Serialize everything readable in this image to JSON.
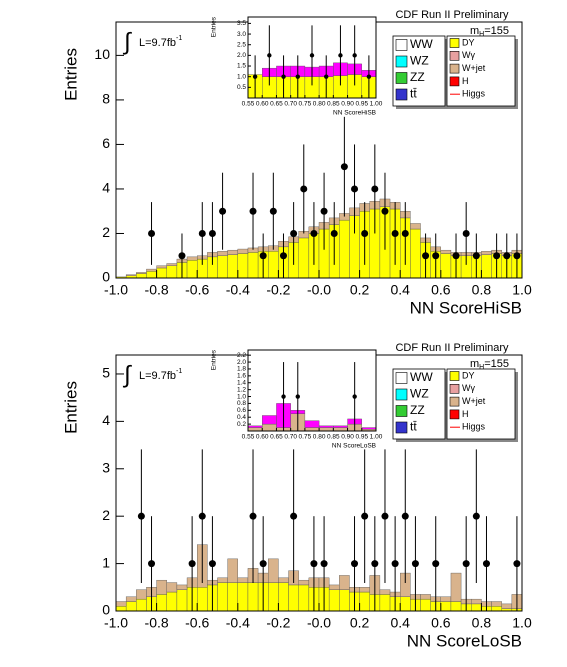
{
  "chart_data": [
    {
      "type": "histogram",
      "title": "CDF Run II Preliminary",
      "mass_label": {
        "base": "m",
        "sub": "H",
        "rest": "=155"
      },
      "lumi": {
        "symbol": "∫",
        "text": "L=9.7fb",
        "sup": "-1"
      },
      "xlabel": "NN ScoreHiSB",
      "ylabel": "Entries",
      "xlim": [
        -1,
        1
      ],
      "ylim": [
        0,
        11.5
      ],
      "xticks": [
        {
          "value": -1,
          "label": "-1.0"
        },
        -0.8,
        -0.6,
        -0.4,
        -0.2,
        {
          "value": 0,
          "label": "-0.0"
        },
        0.2,
        0.4,
        0.6,
        0.8,
        {
          "value": 1,
          "label": "1.0"
        }
      ],
      "yticks": [
        0,
        2,
        4,
        6,
        8,
        10
      ],
      "bins": [
        -1,
        -0.95,
        -0.9,
        -0.85,
        -0.8,
        -0.75,
        -0.7,
        -0.65,
        -0.6,
        -0.55,
        -0.5,
        -0.45,
        -0.4,
        -0.35,
        -0.3,
        -0.25,
        -0.2,
        -0.15,
        -0.1,
        -0.05,
        0,
        0.05,
        0.1,
        0.15,
        0.2,
        0.25,
        0.3,
        0.35,
        0.4,
        0.45,
        0.5,
        0.55,
        0.6,
        0.65,
        0.7,
        0.75,
        0.8,
        0.85,
        0.9,
        0.95,
        1
      ],
      "series": [
        {
          "name": "WW",
          "color": "#ffffff"
        },
        {
          "name": "WZ",
          "color": "#00ffff"
        },
        {
          "name": "ZZ",
          "color": "#33cc33"
        },
        {
          "name": "tt̄",
          "color": "#3333cc"
        },
        {
          "name": "DY",
          "color": "#ffff00",
          "values": [
            0.05,
            0.1,
            0.2,
            0.3,
            0.45,
            0.55,
            0.7,
            0.8,
            0.85,
            0.95,
            1.0,
            1.05,
            1.1,
            1.15,
            1.2,
            1.2,
            1.4,
            1.6,
            1.8,
            2.0,
            2.2,
            2.4,
            2.6,
            2.8,
            3.0,
            3.1,
            3.2,
            3.1,
            2.7,
            2.2,
            1.6,
            1.2,
            1.1,
            1.0,
            1.0,
            1.0,
            1.05,
            1.1,
            1.0,
            1.1
          ]
        },
        {
          "name": "Wγ",
          "color": "#e8a0a0"
        },
        {
          "name": "W+jet",
          "color": "#d9b38c",
          "values": [
            0,
            0.05,
            0.05,
            0.1,
            0.1,
            0.1,
            0.15,
            0.15,
            0.15,
            0.2,
            0.2,
            0.2,
            0.2,
            0.2,
            0.2,
            0.25,
            0.25,
            0.25,
            0.3,
            0.3,
            0.3,
            0.3,
            0.3,
            0.35,
            0.35,
            0.35,
            0.35,
            0.3,
            0.3,
            0.25,
            0.2,
            0.2,
            0.15,
            0.15,
            0.15,
            0.15,
            0.15,
            0.15,
            0.15,
            0.15
          ]
        },
        {
          "name": "H",
          "color": "#ff0000"
        },
        {
          "name": "Higgs",
          "color": "#ff0000",
          "legend_marker": "line"
        }
      ],
      "data": {
        "color": "#000000",
        "values": [
          null,
          null,
          null,
          2,
          null,
          null,
          1,
          null,
          2,
          2,
          3,
          null,
          null,
          3,
          1,
          3,
          1,
          2,
          4,
          2,
          3,
          2,
          5,
          4,
          2,
          4,
          3,
          2,
          2,
          null,
          1,
          1,
          null,
          1,
          2,
          1,
          null,
          1,
          1,
          1
        ],
        "errors": [
          null,
          null,
          null,
          1.41,
          null,
          null,
          1,
          null,
          1.41,
          1.41,
          1.73,
          null,
          null,
          1.73,
          1,
          1.73,
          1,
          1.41,
          2,
          1.41,
          1.73,
          1.41,
          2.24,
          2,
          1.41,
          2,
          1.73,
          1.41,
          1.41,
          null,
          1,
          1,
          null,
          1,
          1.41,
          1,
          null,
          1,
          1,
          1
        ]
      },
      "inset": {
        "type": "histogram",
        "xlabel": "NN ScoreHiSB",
        "ylabel": "Entries",
        "xlim": [
          0.55,
          1
        ],
        "ylim": [
          0,
          3.8
        ],
        "xticks": [
          0.55,
          {
            "value": 0.6,
            "label": "0.60"
          },
          0.65,
          {
            "value": 0.7,
            "label": "0.70"
          },
          0.75,
          {
            "value": 0.8,
            "label": "0.80"
          },
          0.85,
          {
            "value": 0.9,
            "label": "0.90"
          },
          0.95,
          {
            "value": 1,
            "label": "1.00"
          }
        ],
        "yticks": [
          0.5,
          {
            "value": 1,
            "label": "1.0"
          },
          1.5,
          {
            "value": 2,
            "label": "2.0"
          },
          2.5,
          {
            "value": 3,
            "label": "3.0"
          },
          3.5
        ],
        "bins": [
          0.55,
          0.6,
          0.65,
          0.7,
          0.75,
          0.8,
          0.85,
          0.9,
          0.95,
          1
        ],
        "series": [
          {
            "color": "#ffff00",
            "values": [
              1.1,
              1.0,
              1.0,
              1.0,
              1.0,
              1.0,
              1.05,
              1.1,
              1.0
            ]
          },
          {
            "color": "#ff00ff",
            "values": [
              0,
              0.4,
              0.5,
              0.5,
              0.45,
              0.5,
              0.6,
              0.5,
              0.3
            ]
          }
        ],
        "data": {
          "color": "#000000",
          "values": [
            1,
            2,
            1,
            1,
            2,
            1,
            2,
            2,
            1
          ],
          "errors": [
            1,
            1.41,
            1,
            1,
            1.41,
            1,
            1.41,
            1.41,
            1
          ]
        }
      }
    },
    {
      "type": "histogram",
      "title": "CDF Run II Preliminary",
      "mass_label": {
        "base": "m",
        "sub": "H",
        "rest": "=155"
      },
      "lumi": {
        "symbol": "∫",
        "text": "L=9.7fb",
        "sup": "-1"
      },
      "xlabel": "NN ScoreLoSB",
      "ylabel": "Entries",
      "xlim": [
        -1,
        1
      ],
      "ylim": [
        0,
        5.4
      ],
      "xticks": [
        {
          "value": -1,
          "label": "-1.0"
        },
        -0.8,
        -0.6,
        -0.4,
        -0.2,
        {
          "value": 0,
          "label": "-0.0"
        },
        0.2,
        0.4,
        0.6,
        0.8,
        {
          "value": 1,
          "label": "1.0"
        }
      ],
      "yticks": [
        0,
        1,
        2,
        3,
        4,
        5
      ],
      "bins": [
        -1,
        -0.95,
        -0.9,
        -0.85,
        -0.8,
        -0.75,
        -0.7,
        -0.65,
        -0.6,
        -0.55,
        -0.5,
        -0.45,
        -0.4,
        -0.35,
        -0.3,
        -0.25,
        -0.2,
        -0.15,
        -0.1,
        -0.05,
        0,
        0.05,
        0.1,
        0.15,
        0.2,
        0.25,
        0.3,
        0.35,
        0.4,
        0.45,
        0.5,
        0.55,
        0.6,
        0.65,
        0.7,
        0.75,
        0.8,
        0.85,
        0.9,
        0.95,
        1
      ],
      "series": [
        {
          "name": "WW",
          "color": "#ffffff"
        },
        {
          "name": "WZ",
          "color": "#00ffff"
        },
        {
          "name": "ZZ",
          "color": "#33cc33"
        },
        {
          "name": "tt̄",
          "color": "#3333cc"
        },
        {
          "name": "DY",
          "color": "#ffff00",
          "values": [
            0.1,
            0.2,
            0.25,
            0.3,
            0.35,
            0.4,
            0.45,
            0.5,
            0.5,
            0.55,
            0.6,
            0.6,
            0.6,
            0.6,
            0.6,
            0.6,
            0.6,
            0.55,
            0.55,
            0.5,
            0.5,
            0.45,
            0.45,
            0.4,
            0.4,
            0.35,
            0.35,
            0.3,
            0.3,
            0.25,
            0.25,
            0.2,
            0.2,
            0.2,
            0.15,
            0.15,
            0.1,
            0.1,
            0.05,
            0.05
          ]
        },
        {
          "name": "Wγ",
          "color": "#e8a0a0"
        },
        {
          "name": "W+jet",
          "color": "#d9b38c",
          "values": [
            0.1,
            0.1,
            0.2,
            0.2,
            0.3,
            0.2,
            0.1,
            0.2,
            0.9,
            0.1,
            0.1,
            0.5,
            0.1,
            0.3,
            0.2,
            0.5,
            0.1,
            0.3,
            0.1,
            0.2,
            0.2,
            0.1,
            0.3,
            0.1,
            0.1,
            0.4,
            0.1,
            0.1,
            0.5,
            0.1,
            0.1,
            0.1,
            0.1,
            0.6,
            0.1,
            0.1,
            0.1,
            0.1,
            0.1,
            0.3
          ]
        },
        {
          "name": "H",
          "color": "#ff0000"
        },
        {
          "name": "Higgs",
          "color": "#ff0000",
          "legend_marker": "line"
        }
      ],
      "data": {
        "color": "#000000",
        "values": [
          null,
          null,
          2,
          1,
          null,
          null,
          null,
          1,
          2,
          1,
          null,
          null,
          null,
          2,
          1,
          null,
          null,
          2,
          null,
          1,
          1,
          null,
          null,
          1,
          2,
          1,
          2,
          1,
          2,
          1,
          null,
          1,
          null,
          null,
          1,
          2,
          1,
          null,
          null,
          1
        ],
        "errors": [
          null,
          null,
          1.41,
          1,
          null,
          null,
          null,
          1,
          1.41,
          1,
          null,
          null,
          null,
          1.41,
          1,
          null,
          null,
          1.41,
          null,
          1,
          1,
          null,
          null,
          1,
          1.41,
          1,
          1.41,
          1,
          1.41,
          1,
          null,
          1,
          null,
          null,
          1,
          1.41,
          1,
          null,
          null,
          1
        ]
      },
      "inset": {
        "type": "histogram",
        "xlabel": "NN ScoreLoSB",
        "ylabel": "Entries",
        "xlim": [
          0.55,
          1
        ],
        "ylim": [
          0,
          2.35
        ],
        "xticks": [
          0.55,
          {
            "value": 0.6,
            "label": "0.60"
          },
          0.65,
          {
            "value": 0.7,
            "label": "0.70"
          },
          0.75,
          {
            "value": 0.8,
            "label": "0.80"
          },
          0.85,
          {
            "value": 0.9,
            "label": "0.90"
          },
          0.95,
          {
            "value": 1,
            "label": "1.00"
          }
        ],
        "yticks": [
          0.2,
          0.4,
          0.6,
          0.8,
          {
            "value": 1,
            "label": "1.0"
          },
          1.2,
          1.4,
          1.6,
          1.8,
          {
            "value": 2,
            "label": "2.0"
          },
          2.2
        ],
        "bins": [
          0.55,
          0.6,
          0.65,
          0.7,
          0.75,
          0.8,
          0.85,
          0.9,
          0.95,
          1
        ],
        "series": [
          {
            "color": "#d9b38c",
            "values": [
              0.1,
              0.2,
              0.1,
              0.5,
              0.1,
              0.1,
              0.1,
              0.2,
              0.05
            ]
          },
          {
            "color": "#ff00ff",
            "values": [
              0.05,
              0.25,
              0.7,
              0.1,
              0.2,
              0.05,
              0.05,
              0.15,
              0.05
            ]
          }
        ],
        "data": {
          "color": "#000000",
          "values": [
            null,
            null,
            1,
            1,
            null,
            null,
            null,
            1,
            null
          ],
          "errors": [
            null,
            null,
            1,
            1,
            null,
            null,
            null,
            1,
            null
          ]
        }
      }
    }
  ]
}
